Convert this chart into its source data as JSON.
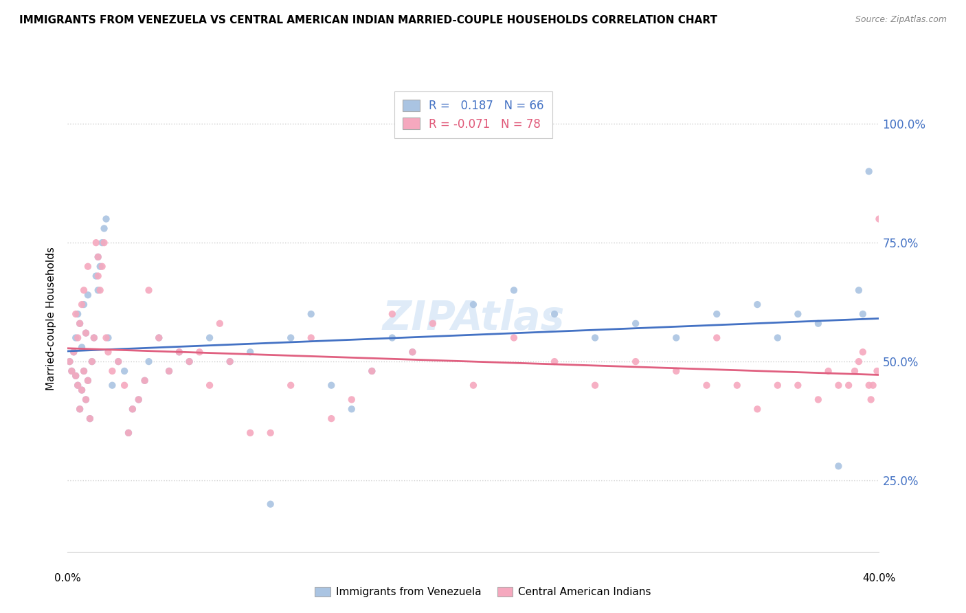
{
  "title": "IMMIGRANTS FROM VENEZUELA VS CENTRAL AMERICAN INDIAN MARRIED-COUPLE HOUSEHOLDS CORRELATION CHART",
  "source": "Source: ZipAtlas.com",
  "ylabel": "Married-couple Households",
  "xmin": 0.0,
  "xmax": 0.4,
  "ymin": 0.1,
  "ymax": 1.08,
  "yticks": [
    0.25,
    0.5,
    0.75,
    1.0
  ],
  "ytick_labels": [
    "25.0%",
    "50.0%",
    "75.0%",
    "100.0%"
  ],
  "series": [
    {
      "label": "Immigrants from Venezuela",
      "R": 0.187,
      "N": 66,
      "color": "#aac4e2",
      "line_color": "#4472c4"
    },
    {
      "label": "Central American Indians",
      "R": -0.071,
      "N": 78,
      "color": "#f5a8be",
      "line_color": "#e06080"
    }
  ],
  "watermark": "ZIPAtlas",
  "venezuela_x": [
    0.001,
    0.002,
    0.003,
    0.004,
    0.004,
    0.005,
    0.005,
    0.006,
    0.006,
    0.007,
    0.007,
    0.008,
    0.008,
    0.009,
    0.009,
    0.01,
    0.01,
    0.011,
    0.012,
    0.013,
    0.014,
    0.015,
    0.015,
    0.016,
    0.017,
    0.018,
    0.019,
    0.02,
    0.022,
    0.025,
    0.028,
    0.03,
    0.032,
    0.035,
    0.038,
    0.04,
    0.045,
    0.05,
    0.055,
    0.06,
    0.07,
    0.08,
    0.09,
    0.1,
    0.11,
    0.12,
    0.13,
    0.14,
    0.15,
    0.16,
    0.17,
    0.2,
    0.22,
    0.24,
    0.26,
    0.28,
    0.3,
    0.32,
    0.34,
    0.35,
    0.36,
    0.37,
    0.38,
    0.39,
    0.392,
    0.395
  ],
  "venezuela_y": [
    0.5,
    0.48,
    0.52,
    0.47,
    0.55,
    0.45,
    0.6,
    0.4,
    0.58,
    0.44,
    0.53,
    0.48,
    0.62,
    0.42,
    0.56,
    0.46,
    0.64,
    0.38,
    0.5,
    0.55,
    0.68,
    0.65,
    0.72,
    0.7,
    0.75,
    0.78,
    0.8,
    0.55,
    0.45,
    0.5,
    0.48,
    0.35,
    0.4,
    0.42,
    0.46,
    0.5,
    0.55,
    0.48,
    0.52,
    0.5,
    0.55,
    0.5,
    0.52,
    0.2,
    0.55,
    0.6,
    0.45,
    0.4,
    0.48,
    0.55,
    0.52,
    0.62,
    0.65,
    0.6,
    0.55,
    0.58,
    0.55,
    0.6,
    0.62,
    0.55,
    0.6,
    0.58,
    0.28,
    0.65,
    0.6,
    0.9
  ],
  "indian_x": [
    0.001,
    0.002,
    0.003,
    0.004,
    0.004,
    0.005,
    0.005,
    0.006,
    0.006,
    0.007,
    0.007,
    0.008,
    0.008,
    0.009,
    0.009,
    0.01,
    0.01,
    0.011,
    0.012,
    0.013,
    0.014,
    0.015,
    0.015,
    0.016,
    0.017,
    0.018,
    0.019,
    0.02,
    0.022,
    0.025,
    0.028,
    0.03,
    0.032,
    0.035,
    0.038,
    0.04,
    0.045,
    0.05,
    0.055,
    0.06,
    0.065,
    0.07,
    0.075,
    0.08,
    0.09,
    0.1,
    0.11,
    0.12,
    0.13,
    0.14,
    0.15,
    0.16,
    0.17,
    0.18,
    0.2,
    0.22,
    0.24,
    0.26,
    0.28,
    0.3,
    0.315,
    0.32,
    0.33,
    0.34,
    0.35,
    0.36,
    0.37,
    0.375,
    0.38,
    0.385,
    0.388,
    0.39,
    0.392,
    0.395,
    0.396,
    0.397,
    0.399,
    0.4
  ],
  "indian_y": [
    0.5,
    0.48,
    0.52,
    0.47,
    0.6,
    0.45,
    0.55,
    0.4,
    0.58,
    0.44,
    0.62,
    0.48,
    0.65,
    0.42,
    0.56,
    0.46,
    0.7,
    0.38,
    0.5,
    0.55,
    0.75,
    0.72,
    0.68,
    0.65,
    0.7,
    0.75,
    0.55,
    0.52,
    0.48,
    0.5,
    0.45,
    0.35,
    0.4,
    0.42,
    0.46,
    0.65,
    0.55,
    0.48,
    0.52,
    0.5,
    0.52,
    0.45,
    0.58,
    0.5,
    0.35,
    0.35,
    0.45,
    0.55,
    0.38,
    0.42,
    0.48,
    0.6,
    0.52,
    0.58,
    0.45,
    0.55,
    0.5,
    0.45,
    0.5,
    0.48,
    0.45,
    0.55,
    0.45,
    0.4,
    0.45,
    0.45,
    0.42,
    0.48,
    0.45,
    0.45,
    0.48,
    0.5,
    0.52,
    0.45,
    0.42,
    0.45,
    0.48,
    0.8
  ]
}
